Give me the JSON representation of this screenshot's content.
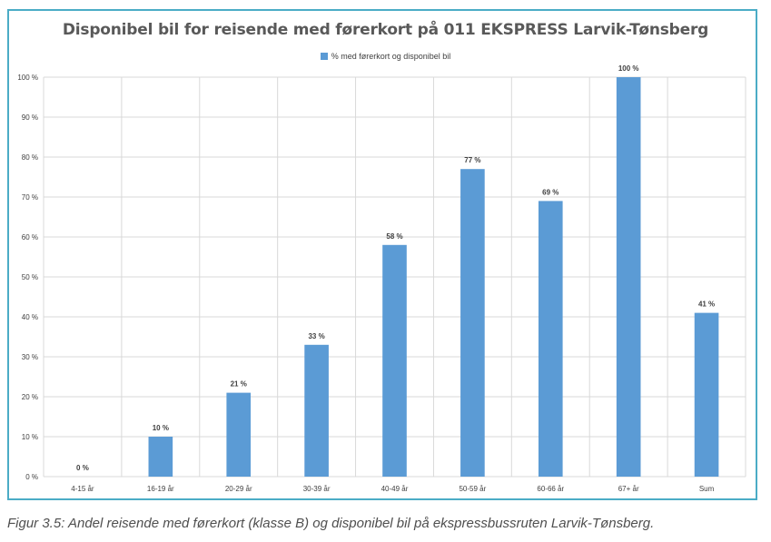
{
  "chart_data": {
    "type": "bar",
    "title": "Disponibel bil for reisende med førerkort på 011 EKSPRESS Larvik-Tønsberg",
    "xlabel": "",
    "ylabel": "",
    "categories": [
      "4-15 år",
      "16-19 år",
      "20-29 år",
      "30-39 år",
      "40-49 år",
      "50-59 år",
      "60-66 år",
      "67+ år",
      "Sum"
    ],
    "series": [
      {
        "name": "% med førerkort og disponibel bil",
        "values": [
          0,
          10,
          21,
          33,
          58,
          77,
          69,
          100,
          41
        ],
        "labels": [
          "0 %",
          "10 %",
          "21 %",
          "33 %",
          "58 %",
          "77 %",
          "69 %",
          "100 %",
          "41 %"
        ],
        "color": "#5b9bd5"
      }
    ],
    "ylim": [
      0,
      100
    ],
    "yticks": [
      0,
      10,
      20,
      30,
      40,
      50,
      60,
      70,
      80,
      90,
      100
    ],
    "ytick_labels": [
      "0 %",
      "10 %",
      "20 %",
      "30 %",
      "40 %",
      "50 %",
      "60 %",
      "70 %",
      "80 %",
      "90 %",
      "100 %"
    ],
    "grid": true,
    "legend_position": "top"
  },
  "colors": {
    "bar": "#5b9bd5",
    "grid": "#d9d9d9",
    "frame_border": "#4bacc6"
  },
  "caption": "Figur 3.5: Andel reisende med førerkort (klasse B) og disponibel bil på ekspressbussruten Larvik-Tønsberg."
}
